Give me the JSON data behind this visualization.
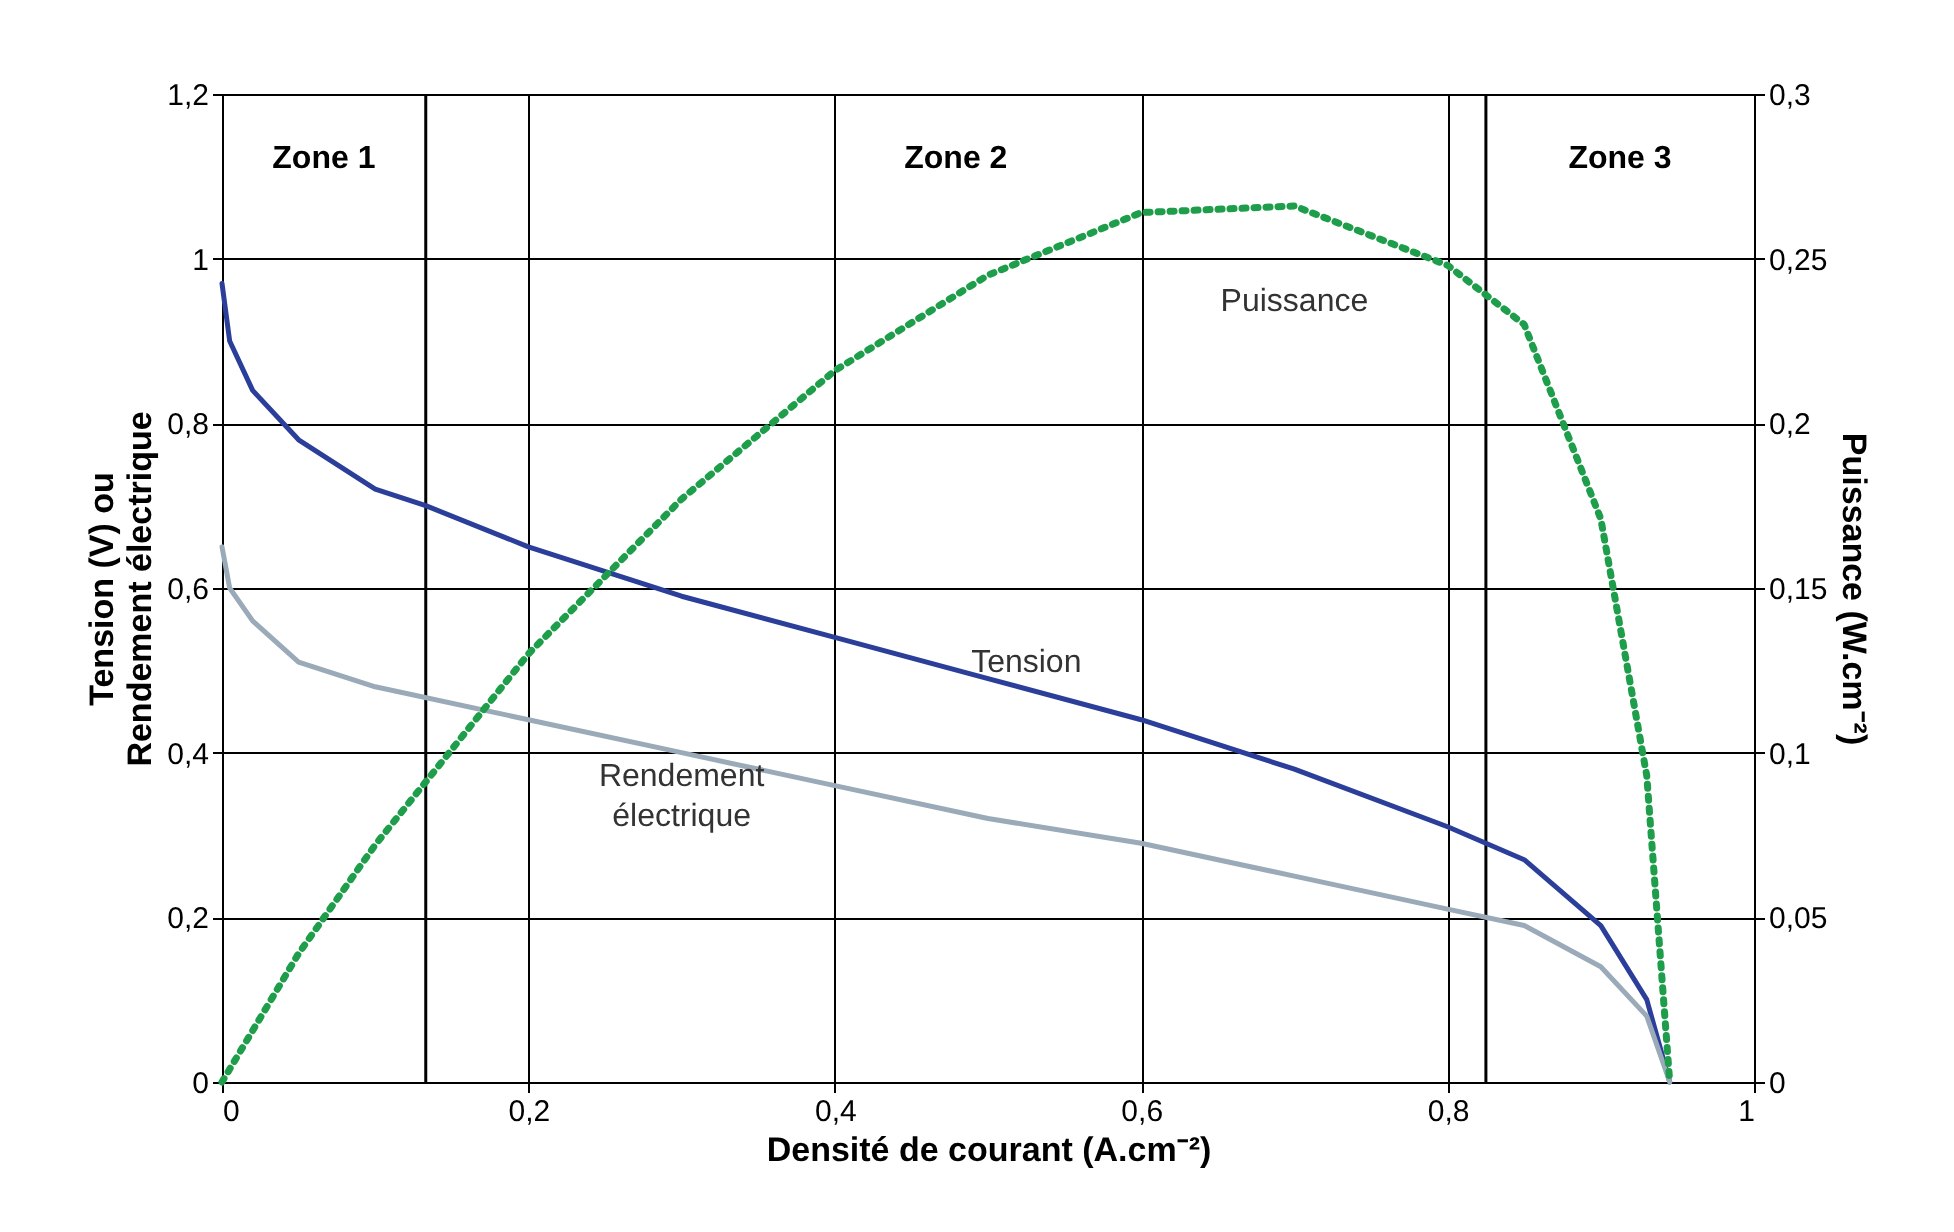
{
  "chart_data": {
    "type": "line",
    "xlabel": "Densité de courant (A.cm⁻²)",
    "ylabel": "Tension (V) ou\nRendement électrique",
    "y2label": "Puissance (W.cm⁻²)",
    "xlim": [
      0,
      1
    ],
    "xticks": [
      0,
      {
        "value": 0.2,
        "label": "0,2"
      },
      {
        "value": 0.4,
        "label": "0,4"
      },
      {
        "value": 0.6,
        "label": "0,6"
      },
      {
        "value": 0.8,
        "label": "0,8"
      },
      1
    ],
    "ylim": [
      0,
      1.2
    ],
    "yticks": [
      0,
      {
        "value": 0.2,
        "label": "0,2"
      },
      {
        "value": 0.4,
        "label": "0,4"
      },
      {
        "value": 0.6,
        "label": "0,6"
      },
      {
        "value": 0.8,
        "label": "0,8"
      },
      1,
      {
        "value": 1.2,
        "label": "1,2"
      }
    ],
    "y2lim": [
      0,
      0.3
    ],
    "y2ticks": [
      0,
      {
        "value": 0.05,
        "label": "0,05"
      },
      {
        "value": 0.1,
        "label": "0,1"
      },
      {
        "value": 0.15,
        "label": "0,15"
      },
      {
        "value": 0.2,
        "label": "0,2"
      },
      {
        "value": 0.25,
        "label": "0,25"
      },
      {
        "value": 0.3,
        "label": "0,3"
      }
    ],
    "grid": true,
    "marker": "none",
    "ref_lines": [
      {
        "axis": "x",
        "value": 0.133,
        "color": "#000000"
      },
      {
        "axis": "x",
        "value": 0.825,
        "color": "#000000"
      }
    ],
    "annotations": [
      "Zone 1",
      "Zone 2",
      "Zone 3"
    ],
    "series": [
      {
        "name": "Tension",
        "color": "#2b3f9a",
        "line_style": "solid",
        "x": [
          0,
          0.005,
          0.02,
          0.05,
          0.1,
          0.133,
          0.2,
          0.3,
          0.4,
          0.5,
          0.6,
          0.7,
          0.8,
          0.85,
          0.9,
          0.93,
          0.945
        ],
        "values": [
          0.97,
          0.9,
          0.84,
          0.78,
          0.72,
          0.7,
          0.65,
          0.59,
          0.54,
          0.49,
          0.44,
          0.38,
          0.31,
          0.27,
          0.19,
          0.1,
          0
        ]
      },
      {
        "name": "Rendement électrique",
        "color": "#9aaab8",
        "line_style": "solid",
        "x": [
          0,
          0.005,
          0.02,
          0.05,
          0.1,
          0.2,
          0.3,
          0.4,
          0.5,
          0.6,
          0.7,
          0.8,
          0.85,
          0.9,
          0.93,
          0.945
        ],
        "values": [
          0.65,
          0.6,
          0.56,
          0.51,
          0.48,
          0.44,
          0.4,
          0.36,
          0.32,
          0.29,
          0.25,
          0.21,
          0.19,
          0.14,
          0.08,
          0
        ]
      },
      {
        "name": "Puissance",
        "color": "#1e9e4a",
        "line_style": "dotted",
        "axis": "y2",
        "x": [
          0,
          0.05,
          0.1,
          0.2,
          0.3,
          0.4,
          0.5,
          0.6,
          0.7,
          0.8,
          0.85,
          0.9,
          0.93,
          0.945
        ],
        "values": [
          0,
          0.039,
          0.072,
          0.13,
          0.177,
          0.216,
          0.245,
          0.264,
          0.266,
          0.248,
          0.23,
          0.171,
          0.093,
          0
        ]
      }
    ]
  }
}
